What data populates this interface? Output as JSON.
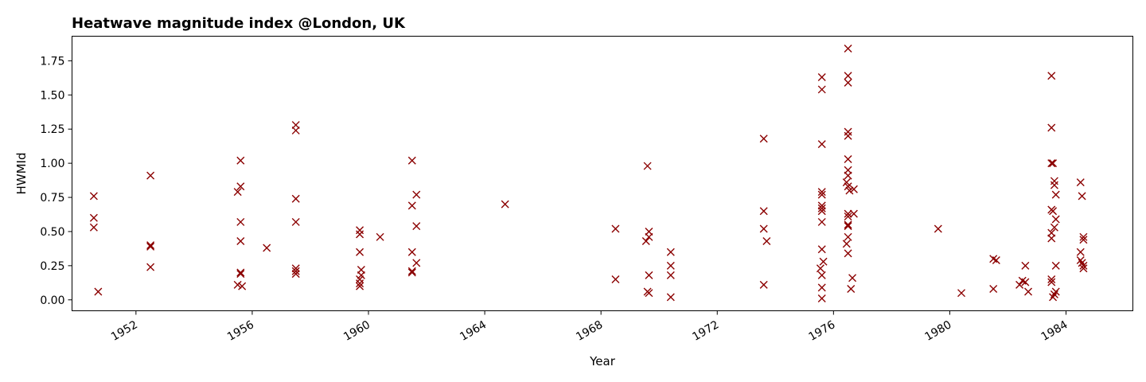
{
  "chart_data": {
    "type": "scatter",
    "title": "Heatwave magnitude index @London, UK",
    "xlabel": "Year",
    "ylabel": "HWMId",
    "x_axis_type": "date",
    "xlim": [
      1949.8,
      1986.3
    ],
    "ylim": [
      -0.08,
      1.93
    ],
    "x_ticks": [
      1952,
      1956,
      1960,
      1964,
      1968,
      1972,
      1976,
      1980,
      1984
    ],
    "y_ticks": [
      "0.00",
      "0.25",
      "0.50",
      "0.75",
      "1.00",
      "1.25",
      "1.50",
      "1.75"
    ],
    "grid": false,
    "marker": "x",
    "color": "#8b0000",
    "series": [
      {
        "points": [
          [
            1950.55,
            0.76
          ],
          [
            1950.55,
            0.6
          ],
          [
            1950.55,
            0.53
          ],
          [
            1950.7,
            0.06
          ],
          [
            1952.5,
            0.91
          ],
          [
            1952.5,
            0.4
          ],
          [
            1952.5,
            0.39
          ],
          [
            1952.5,
            0.24
          ],
          [
            1955.6,
            1.02
          ],
          [
            1955.6,
            0.83
          ],
          [
            1955.5,
            0.79
          ],
          [
            1955.6,
            0.57
          ],
          [
            1955.6,
            0.43
          ],
          [
            1955.6,
            0.2
          ],
          [
            1955.6,
            0.19
          ],
          [
            1955.5,
            0.11
          ],
          [
            1955.65,
            0.1
          ],
          [
            1956.5,
            0.38
          ],
          [
            1957.5,
            1.28
          ],
          [
            1957.5,
            1.24
          ],
          [
            1957.5,
            0.74
          ],
          [
            1957.5,
            0.57
          ],
          [
            1957.5,
            0.23
          ],
          [
            1957.5,
            0.21
          ],
          [
            1957.5,
            0.19
          ],
          [
            1959.7,
            0.51
          ],
          [
            1959.7,
            0.48
          ],
          [
            1959.7,
            0.35
          ],
          [
            1959.75,
            0.22
          ],
          [
            1959.75,
            0.18
          ],
          [
            1959.7,
            0.15
          ],
          [
            1959.7,
            0.12
          ],
          [
            1959.7,
            0.1
          ],
          [
            1960.4,
            0.46
          ],
          [
            1961.5,
            1.02
          ],
          [
            1961.5,
            0.69
          ],
          [
            1961.65,
            0.77
          ],
          [
            1961.65,
            0.54
          ],
          [
            1961.5,
            0.35
          ],
          [
            1961.65,
            0.27
          ],
          [
            1961.5,
            0.21
          ],
          [
            1961.5,
            0.2
          ],
          [
            1964.7,
            0.7
          ],
          [
            1968.5,
            0.52
          ],
          [
            1968.5,
            0.15
          ],
          [
            1969.6,
            0.98
          ],
          [
            1969.65,
            0.5
          ],
          [
            1969.65,
            0.46
          ],
          [
            1969.55,
            0.43
          ],
          [
            1969.65,
            0.18
          ],
          [
            1969.6,
            0.06
          ],
          [
            1969.65,
            0.05
          ],
          [
            1970.4,
            0.35
          ],
          [
            1970.4,
            0.25
          ],
          [
            1970.4,
            0.18
          ],
          [
            1970.4,
            0.02
          ],
          [
            1973.6,
            1.18
          ],
          [
            1973.6,
            0.65
          ],
          [
            1973.6,
            0.52
          ],
          [
            1973.7,
            0.43
          ],
          [
            1973.6,
            0.11
          ],
          [
            1975.6,
            1.63
          ],
          [
            1975.6,
            1.54
          ],
          [
            1975.6,
            1.14
          ],
          [
            1975.6,
            0.79
          ],
          [
            1975.6,
            0.77
          ],
          [
            1975.6,
            0.69
          ],
          [
            1975.6,
            0.67
          ],
          [
            1975.6,
            0.65
          ],
          [
            1975.6,
            0.57
          ],
          [
            1975.6,
            0.37
          ],
          [
            1975.65,
            0.28
          ],
          [
            1975.55,
            0.23
          ],
          [
            1975.6,
            0.18
          ],
          [
            1975.6,
            0.09
          ],
          [
            1975.6,
            0.01
          ],
          [
            1976.5,
            1.84
          ],
          [
            1976.5,
            1.64
          ],
          [
            1976.5,
            1.59
          ],
          [
            1976.5,
            1.23
          ],
          [
            1976.5,
            1.2
          ],
          [
            1976.5,
            1.03
          ],
          [
            1976.5,
            0.95
          ],
          [
            1976.5,
            0.91
          ],
          [
            1976.45,
            0.86
          ],
          [
            1976.5,
            0.83
          ],
          [
            1976.55,
            0.8
          ],
          [
            1976.7,
            0.81
          ],
          [
            1976.5,
            0.63
          ],
          [
            1976.5,
            0.61
          ],
          [
            1976.7,
            0.63
          ],
          [
            1976.5,
            0.55
          ],
          [
            1976.5,
            0.54
          ],
          [
            1976.5,
            0.46
          ],
          [
            1976.45,
            0.41
          ],
          [
            1976.5,
            0.34
          ],
          [
            1976.65,
            0.16
          ],
          [
            1976.6,
            0.08
          ],
          [
            1979.6,
            0.52
          ],
          [
            1980.4,
            0.05
          ],
          [
            1981.5,
            0.3
          ],
          [
            1981.6,
            0.29
          ],
          [
            1981.5,
            0.08
          ],
          [
            1982.5,
            0.14
          ],
          [
            1982.6,
            0.13
          ],
          [
            1982.4,
            0.11
          ],
          [
            1982.6,
            0.25
          ],
          [
            1982.7,
            0.06
          ],
          [
            1983.5,
            1.64
          ],
          [
            1983.5,
            1.26
          ],
          [
            1983.5,
            1.0
          ],
          [
            1983.55,
            1.0
          ],
          [
            1983.6,
            0.87
          ],
          [
            1983.6,
            0.84
          ],
          [
            1983.65,
            0.77
          ],
          [
            1983.5,
            0.66
          ],
          [
            1983.55,
            0.65
          ],
          [
            1983.65,
            0.59
          ],
          [
            1983.6,
            0.53
          ],
          [
            1983.5,
            0.49
          ],
          [
            1983.5,
            0.45
          ],
          [
            1983.65,
            0.25
          ],
          [
            1983.5,
            0.15
          ],
          [
            1983.5,
            0.13
          ],
          [
            1983.65,
            0.06
          ],
          [
            1983.6,
            0.04
          ],
          [
            1983.55,
            0.02
          ],
          [
            1984.5,
            0.86
          ],
          [
            1984.55,
            0.76
          ],
          [
            1984.6,
            0.46
          ],
          [
            1984.6,
            0.44
          ],
          [
            1984.5,
            0.35
          ],
          [
            1984.5,
            0.29
          ],
          [
            1984.55,
            0.27
          ],
          [
            1984.6,
            0.25
          ],
          [
            1984.6,
            0.23
          ]
        ]
      }
    ]
  }
}
